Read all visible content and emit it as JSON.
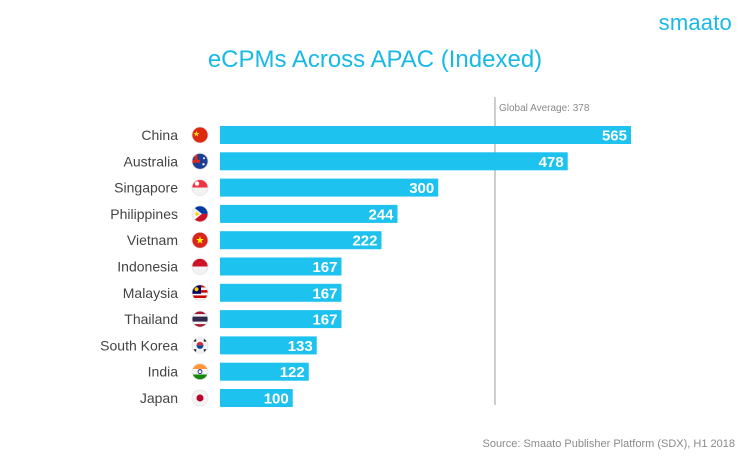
{
  "brand": {
    "logo_text": "smaato"
  },
  "chart_data": {
    "type": "bar",
    "orientation": "horizontal",
    "title": "eCPMs Across APAC (Indexed)",
    "source": "Source: Smaato Publisher Platform (SDX), H1 2018",
    "reference_line": {
      "label": "Global Average: 378",
      "value": 378
    },
    "xlim": [
      0,
      565
    ],
    "bar_color": "#1ec2ee",
    "label_color": "#ffffff",
    "categories": [
      "China",
      "Australia",
      "Singapore",
      "Philippines",
      "Vietnam",
      "Indonesia",
      "Malaysia",
      "Thailand",
      "South Korea",
      "India",
      "Japan"
    ],
    "flags": [
      "china-flag-icon",
      "australia-flag-icon",
      "singapore-flag-icon",
      "philippines-flag-icon",
      "vietnam-flag-icon",
      "indonesia-flag-icon",
      "malaysia-flag-icon",
      "thailand-flag-icon",
      "south-korea-flag-icon",
      "india-flag-icon",
      "japan-flag-icon"
    ],
    "values": [
      565,
      478,
      300,
      244,
      222,
      167,
      167,
      167,
      133,
      122,
      100
    ]
  }
}
